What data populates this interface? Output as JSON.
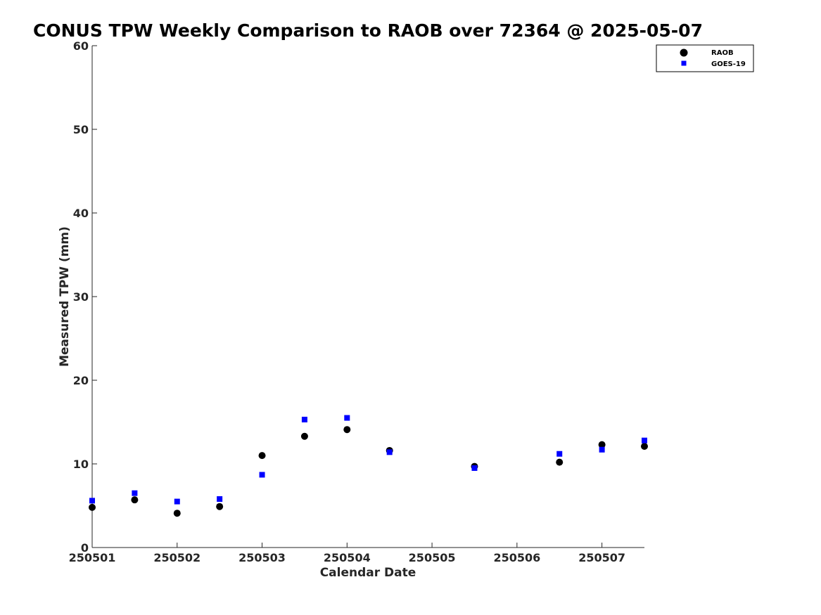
{
  "chart_data": {
    "type": "scatter",
    "title": "CONUS TPW Weekly Comparison to RAOB over 72364 @ 2025-05-07",
    "xlabel": "Calendar Date",
    "ylabel": "Measured TPW (mm)",
    "xlim": [
      250501,
      250507.5
    ],
    "ylim": [
      0,
      60
    ],
    "xticks": [
      250501,
      250502,
      250503,
      250504,
      250505,
      250506,
      250507
    ],
    "xtick_labels": [
      "250501",
      "250502",
      "250503",
      "250504",
      "250505",
      "250506",
      "250507"
    ],
    "yticks": [
      0,
      10,
      20,
      30,
      40,
      50,
      60
    ],
    "ytick_labels": [
      "0",
      "10",
      "20",
      "30",
      "40",
      "50",
      "60"
    ],
    "grid": false,
    "legend_position": "top-right",
    "series": [
      {
        "name": "RAOB",
        "marker": "circle",
        "color": "#000000",
        "x": [
          250501,
          250501.5,
          250502,
          250502.5,
          250503,
          250503.5,
          250504,
          250504.5,
          250505.5,
          250506.5,
          250507,
          250507.5
        ],
        "y": [
          4.8,
          5.7,
          4.1,
          4.9,
          11.0,
          13.3,
          14.1,
          11.6,
          9.7,
          10.2,
          12.3,
          12.1
        ]
      },
      {
        "name": "GOES-19",
        "marker": "square",
        "color": "#0000ff",
        "x": [
          250501,
          250501.5,
          250502,
          250502.5,
          250503,
          250503.5,
          250504,
          250504.5,
          250505.5,
          250506.5,
          250507,
          250507.5
        ],
        "y": [
          5.6,
          6.5,
          5.5,
          5.8,
          8.7,
          15.3,
          15.5,
          11.4,
          9.5,
          11.2,
          11.7,
          12.8
        ]
      }
    ]
  }
}
